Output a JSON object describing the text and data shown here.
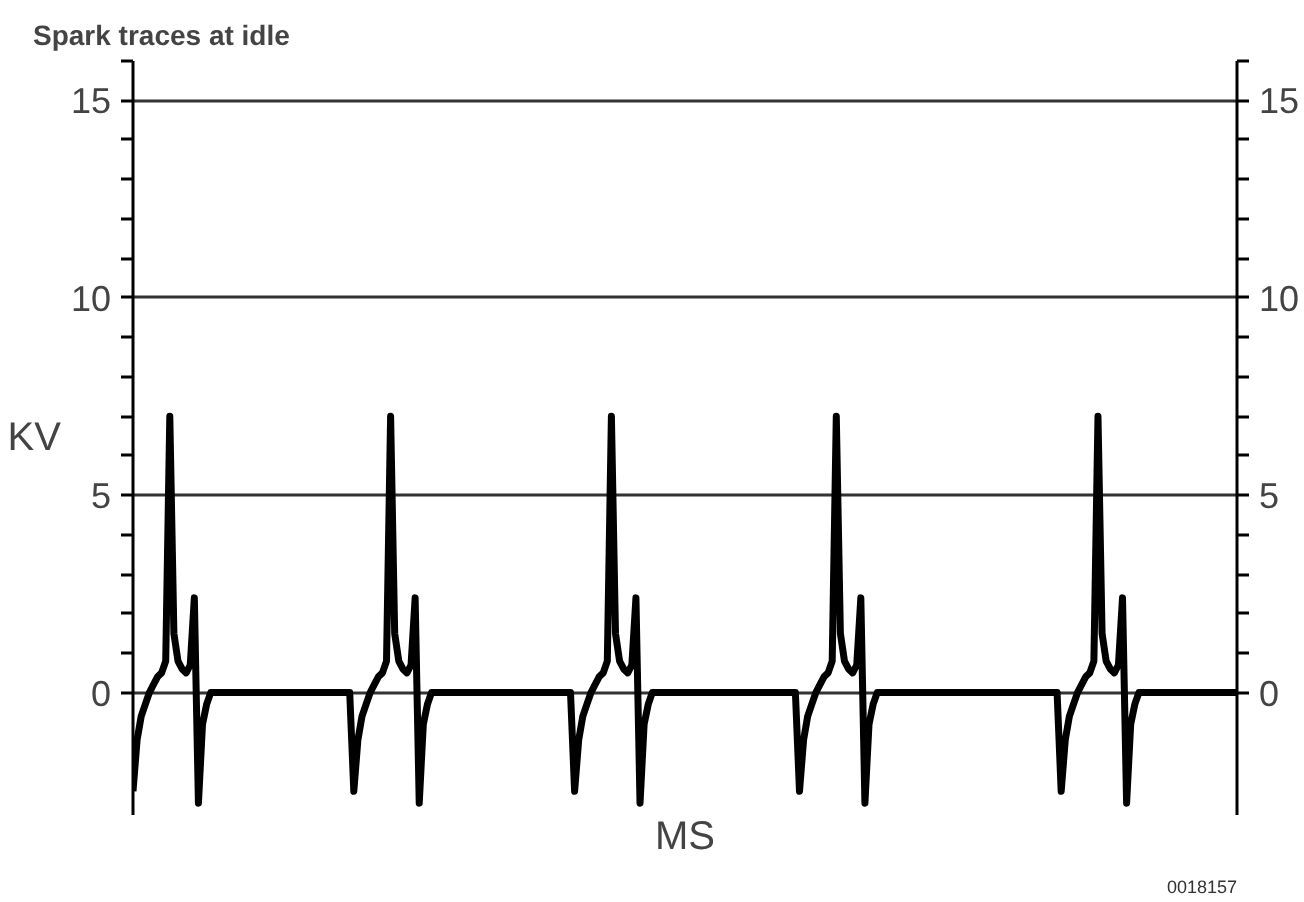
{
  "chart_data": {
    "type": "line",
    "title": "Spark traces at idle",
    "xlabel": "MS",
    "ylabel": "KV",
    "annotations": [
      "0018157"
    ],
    "categories": [
      null,
      null,
      null,
      null,
      null,
      null,
      null,
      null,
      null,
      null,
      null,
      null,
      null,
      null,
      null,
      null,
      null,
      null,
      null,
      null,
      null,
      null,
      null,
      null,
      null,
      null,
      null,
      null,
      null,
      null,
      null,
      null,
      null,
      null,
      null,
      null,
      null,
      null,
      null,
      null,
      null,
      null,
      null,
      null,
      null,
      null,
      null,
      null,
      null,
      null,
      null,
      null,
      null,
      null,
      null,
      null,
      null,
      null,
      null,
      null,
      null,
      null,
      null,
      null,
      null,
      null,
      null,
      null,
      null,
      null,
      null,
      null,
      null,
      null,
      null,
      null,
      null,
      null,
      null,
      null,
      null,
      null,
      null,
      null,
      null,
      null,
      null,
      null,
      null,
      null,
      null,
      null,
      null,
      null,
      null,
      null,
      null,
      null,
      null,
      null,
      null,
      null,
      null,
      null,
      null,
      null,
      null,
      null,
      null,
      null,
      null,
      null,
      null,
      null,
      null,
      null,
      null,
      null,
      null,
      null,
      null,
      null,
      null,
      null,
      null,
      null,
      null,
      null,
      null,
      null,
      null,
      null,
      null,
      null,
      null,
      null,
      null,
      null,
      null,
      null,
      null,
      null,
      null,
      null,
      null,
      null,
      null,
      null,
      null,
      null,
      null,
      null,
      null,
      null,
      null,
      null,
      null,
      null,
      null,
      null,
      null,
      null,
      null,
      null,
      null,
      null,
      null,
      null,
      null,
      null,
      null,
      null,
      null,
      null,
      null,
      null,
      null,
      null,
      null,
      null,
      null,
      null,
      null,
      null,
      null,
      null,
      null,
      null,
      null,
      null,
      null,
      null,
      null,
      null,
      null,
      null,
      null,
      null,
      null,
      null,
      null,
      null,
      null,
      null,
      null,
      null,
      null,
      null,
      null,
      null,
      null,
      null,
      null,
      null,
      null,
      null,
      null,
      null,
      null,
      null,
      null,
      null,
      null,
      null,
      null,
      null,
      null,
      null,
      null,
      null,
      null,
      null,
      null,
      null,
      null,
      null,
      null,
      null,
      null,
      null,
      null,
      null,
      null,
      null,
      null,
      null,
      null,
      null,
      null,
      null,
      null,
      null,
      null,
      null,
      null,
      null,
      null,
      null,
      null,
      null,
      null,
      null,
      null,
      null,
      null,
      null,
      null,
      null,
      null,
      null,
      null
    ],
    "series": [
      {
        "color": "#000000",
        "values": [
          -2.5,
          -1.2,
          -0.6,
          -0.3,
          0,
          0.2,
          0.4,
          0.5,
          0.8,
          7,
          1.5,
          0.8,
          0.6,
          0.5,
          0.7,
          2.4,
          -2.8,
          -0.8,
          -0.3,
          0,
          0,
          0,
          0,
          0,
          0,
          0,
          0,
          0,
          0,
          0,
          0,
          0,
          0,
          0,
          0,
          0,
          0,
          0,
          0,
          0,
          0,
          0,
          0,
          0,
          0,
          0,
          0,
          0,
          0,
          0,
          0,
          0,
          0,
          0,
          -2.5,
          -1.2,
          -0.6,
          -0.3,
          0,
          0.2,
          0.4,
          0.5,
          0.8,
          7,
          1.5,
          0.8,
          0.6,
          0.5,
          0.7,
          2.4,
          -2.8,
          -0.8,
          -0.3,
          0,
          0,
          0,
          0,
          0,
          0,
          0,
          0,
          0,
          0,
          0,
          0,
          0,
          0,
          0,
          0,
          0,
          0,
          0,
          0,
          0,
          0,
          0,
          0,
          0,
          0,
          0,
          0,
          0,
          0,
          0,
          0,
          0,
          0,
          0,
          -2.5,
          -1.2,
          -0.6,
          -0.3,
          0,
          0.2,
          0.4,
          0.5,
          0.8,
          7,
          1.5,
          0.8,
          0.6,
          0.5,
          0.7,
          2.4,
          -2.8,
          -0.8,
          -0.3,
          0,
          0,
          0,
          0,
          0,
          0,
          0,
          0,
          0,
          0,
          0,
          0,
          0,
          0,
          0,
          0,
          0,
          0,
          0,
          0,
          0,
          0,
          0,
          0,
          0,
          0,
          0,
          0,
          0,
          0,
          0,
          0,
          0,
          0,
          0,
          0,
          -2.5,
          -1.2,
          -0.6,
          -0.3,
          0,
          0.2,
          0.4,
          0.5,
          0.8,
          7,
          1.5,
          0.8,
          0.6,
          0.5,
          0.7,
          2.4,
          -2.8,
          -0.8,
          -0.3,
          0,
          0,
          0,
          0,
          0,
          0,
          0,
          0,
          0,
          0,
          0,
          0,
          0,
          0,
          0,
          0,
          0,
          0,
          0,
          0,
          0,
          0,
          0,
          0,
          0,
          0,
          0,
          0,
          0,
          0,
          0,
          0,
          0,
          0,
          0,
          0,
          0,
          0,
          0,
          0,
          0,
          0,
          0,
          0,
          0,
          -2.5,
          -1.2,
          -0.6,
          -0.3,
          0,
          0.2,
          0.4,
          0.5,
          0.8,
          7,
          1.5,
          0.8,
          0.6,
          0.5,
          0.7,
          2.4,
          -2.8,
          -0.8,
          -0.3,
          0,
          0,
          0,
          0,
          0,
          0,
          0,
          0,
          0,
          0,
          0,
          0,
          0,
          0,
          0,
          0,
          0,
          0,
          0,
          0,
          0,
          0,
          0,
          0,
          0
        ]
      }
    ],
    "ylim": [
      -3.1,
      16
    ],
    "yticks": [
      0,
      {
        "value": 1,
        "label": null
      },
      {
        "value": 2,
        "label": null
      },
      {
        "value": 3,
        "label": null
      },
      {
        "value": 4,
        "label": null
      },
      5,
      {
        "value": 6,
        "label": null
      },
      {
        "value": 7,
        "label": null
      },
      {
        "value": 8,
        "label": null
      },
      {
        "value": 9,
        "label": null
      },
      10,
      {
        "value": 11,
        "label": null
      },
      {
        "value": 12,
        "label": null
      },
      {
        "value": 13,
        "label": null
      },
      {
        "value": 14,
        "label": null
      },
      15,
      {
        "value": 16,
        "label": null
      }
    ],
    "y2lim": [
      -3.1,
      16
    ],
    "y2ticks": [
      0,
      {
        "value": 1,
        "label": null
      },
      {
        "value": 2,
        "label": null
      },
      {
        "value": 3,
        "label": null
      },
      {
        "value": 4,
        "label": null
      },
      5,
      {
        "value": 6,
        "label": null
      },
      {
        "value": 7,
        "label": null
      },
      {
        "value": 8,
        "label": null
      },
      {
        "value": 9,
        "label": null
      },
      10,
      {
        "value": 11,
        "label": null
      },
      {
        "value": 12,
        "label": null
      },
      {
        "value": 13,
        "label": null
      },
      {
        "value": 14,
        "label": null
      },
      15,
      {
        "value": 16,
        "label": null
      }
    ],
    "grid": "y",
    "tick_labels": "y",
    "line_style": "solid",
    "marker": "none"
  }
}
